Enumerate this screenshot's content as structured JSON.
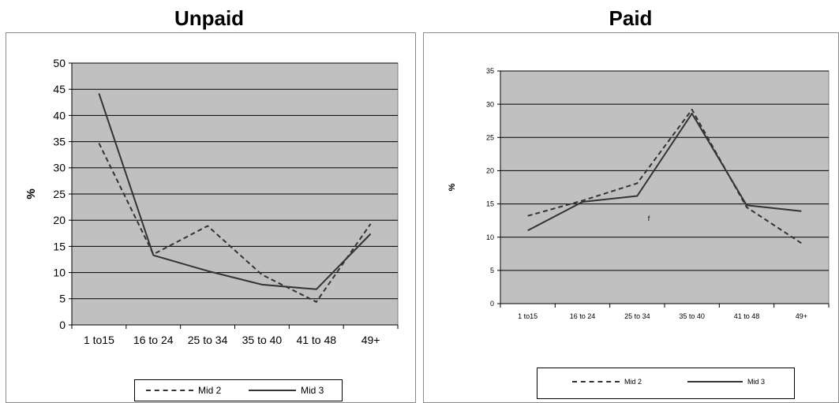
{
  "chart_data": [
    {
      "type": "line",
      "title": "Unpaid",
      "ylabel": "%",
      "categories": [
        "1 to15",
        "16 to 24",
        "25 to 34",
        "35 to 40",
        "41 to 48",
        "49+"
      ],
      "ylim": [
        0,
        50
      ],
      "yticks": [
        "0",
        "5",
        "10",
        "15",
        "20",
        "25",
        "30",
        "35",
        "40",
        "45",
        "50"
      ],
      "grid": true,
      "legend_position": "bottom",
      "series": [
        {
          "name": "Mid 2",
          "style": "dashed",
          "values": [
            34.7,
            13.5,
            18.9,
            9.6,
            4.4,
            19.3
          ]
        },
        {
          "name": "Mid 3",
          "style": "solid",
          "values": [
            44.2,
            13.3,
            10.3,
            7.7,
            6.8,
            17.4
          ]
        }
      ]
    },
    {
      "type": "line",
      "title": "Paid",
      "ylabel": "%",
      "categories": [
        "1 to15",
        "16 to 24",
        "25 to 34",
        "35 to 40",
        "41 to 48",
        "49+"
      ],
      "ylim": [
        0,
        35
      ],
      "yticks": [
        "0",
        "5",
        "10",
        "15",
        "20",
        "25",
        "30",
        "35"
      ],
      "grid": true,
      "legend_position": "bottom",
      "annotation": "f",
      "series": [
        {
          "name": "Mid 2",
          "style": "dashed",
          "values": [
            13.2,
            15.5,
            18.1,
            29.2,
            14.5,
            9.1
          ]
        },
        {
          "name": "Mid 3",
          "style": "solid",
          "values": [
            11.0,
            15.3,
            16.2,
            28.6,
            14.8,
            13.9
          ]
        }
      ]
    }
  ],
  "colors": {
    "plot_bg": "#c0c0c0",
    "line": "#333333",
    "grid": "#000000"
  }
}
